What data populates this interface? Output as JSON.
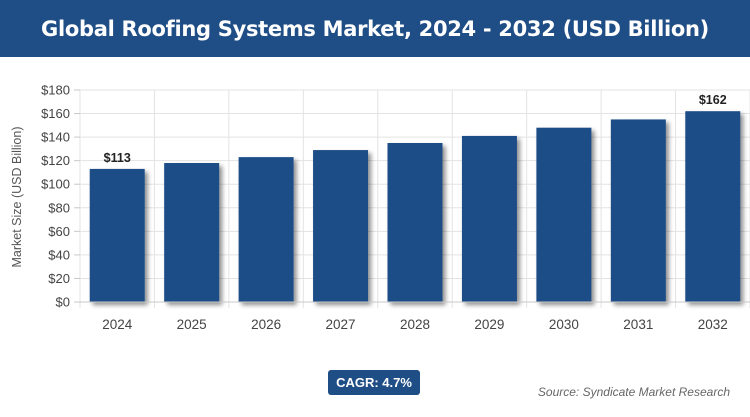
{
  "header": {
    "title": "Global Roofing Systems Market, 2024 - 2032 (USD Billion)"
  },
  "chart_data": {
    "type": "bar",
    "title": "Global Roofing Systems Market, 2024 - 2032 (USD Billion)",
    "ylabel": "Market Size (USD Billion)",
    "xlabel": "",
    "categories": [
      "2024",
      "2025",
      "2026",
      "2027",
      "2028",
      "2029",
      "2030",
      "2031",
      "2032"
    ],
    "values": [
      113,
      118,
      123,
      129,
      135,
      141,
      148,
      155,
      162
    ],
    "data_labels": {
      "2024": "$113",
      "2032": "$162"
    },
    "ylim": [
      0,
      180
    ],
    "yticks": [
      "$0",
      "$20",
      "$40",
      "$60",
      "$80",
      "$100",
      "$120",
      "$140",
      "$160",
      "$180"
    ],
    "grid": true,
    "bar_color": "#1f4e86"
  },
  "footer": {
    "cagr": "CAGR: 4.7%",
    "source": "Source: Syndicate Market Research"
  }
}
